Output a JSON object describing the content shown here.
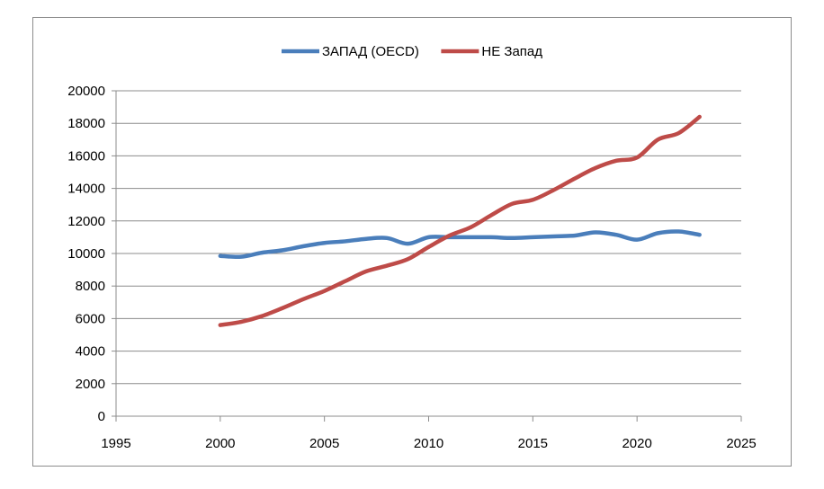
{
  "chart_data": {
    "type": "line",
    "title": "",
    "xlabel": "",
    "ylabel": "",
    "xlim": [
      1995,
      2025
    ],
    "ylim": [
      0,
      20000
    ],
    "x_ticks": [
      1995,
      2000,
      2005,
      2010,
      2015,
      2020,
      2025
    ],
    "y_ticks": [
      0,
      2000,
      4000,
      6000,
      8000,
      10000,
      12000,
      14000,
      16000,
      18000,
      20000
    ],
    "grid": "horizontal",
    "legend_position": "top",
    "x": [
      2000,
      2001,
      2002,
      2003,
      2004,
      2005,
      2006,
      2007,
      2008,
      2009,
      2010,
      2011,
      2012,
      2013,
      2014,
      2015,
      2016,
      2017,
      2018,
      2019,
      2020,
      2021,
      2022,
      2023
    ],
    "series": [
      {
        "name": "ЗАПАД (OECD)",
        "color": "#4a7ebb",
        "values": [
          9850,
          9800,
          10050,
          10200,
          10450,
          10650,
          10750,
          10900,
          10950,
          10600,
          11000,
          11000,
          11000,
          11000,
          10950,
          11000,
          11050,
          11100,
          11300,
          11150,
          10850,
          11250,
          11350,
          11150
        ]
      },
      {
        "name": "НЕ Запад",
        "color": "#be4b48",
        "values": [
          5600,
          5800,
          6150,
          6650,
          7200,
          7700,
          8300,
          8900,
          9250,
          9650,
          10400,
          11100,
          11600,
          12350,
          13050,
          13300,
          13900,
          14600,
          15250,
          15700,
          15900,
          17000,
          17400,
          18400
        ]
      }
    ]
  }
}
